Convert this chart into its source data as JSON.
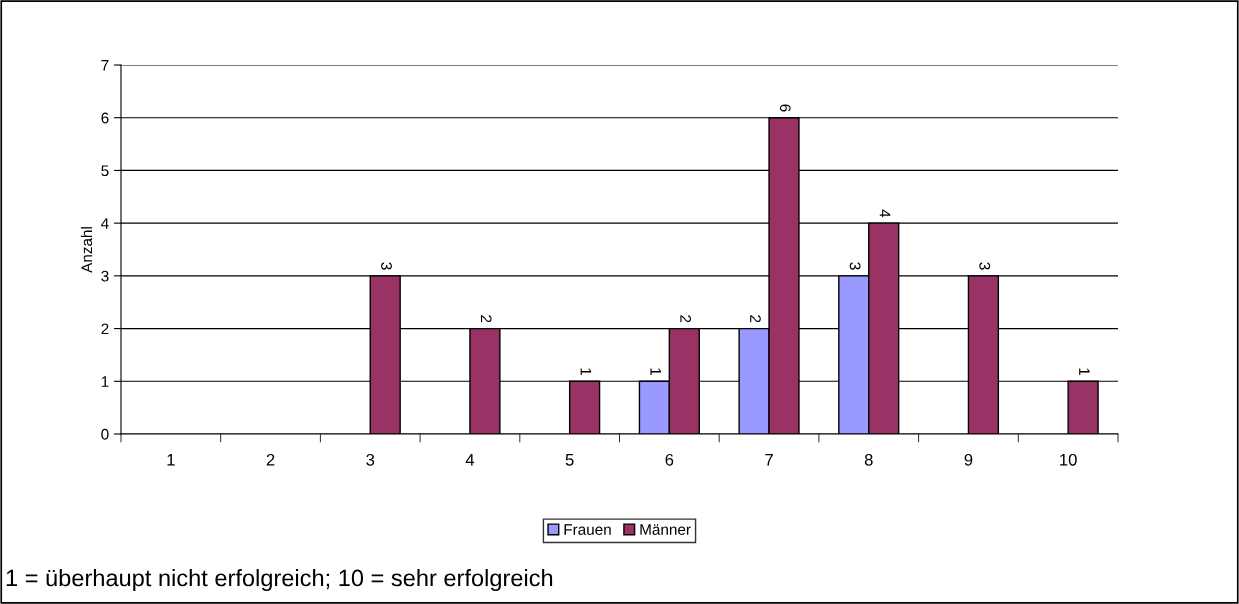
{
  "chart_data": {
    "type": "bar",
    "ylabel": "Anzahl",
    "categories": [
      "1",
      "2",
      "3",
      "4",
      "5",
      "6",
      "7",
      "8",
      "9",
      "10"
    ],
    "series": [
      {
        "name": "Frauen",
        "color": "#9999ff",
        "values": [
          null,
          null,
          null,
          null,
          null,
          1,
          2,
          3,
          null,
          null
        ]
      },
      {
        "name": "Männer",
        "color": "#993366",
        "values": [
          null,
          null,
          3,
          2,
          1,
          2,
          6,
          4,
          3,
          1
        ]
      }
    ],
    "ylim": [
      0,
      7
    ],
    "yticks": [
      0,
      1,
      2,
      3,
      4,
      5,
      6,
      7
    ],
    "grid": "y",
    "legend": "bottom",
    "data_labels": true,
    "annotations": [
      "1 = überhaupt nicht erfolgreich; 10 = sehr erfolgreich"
    ]
  }
}
